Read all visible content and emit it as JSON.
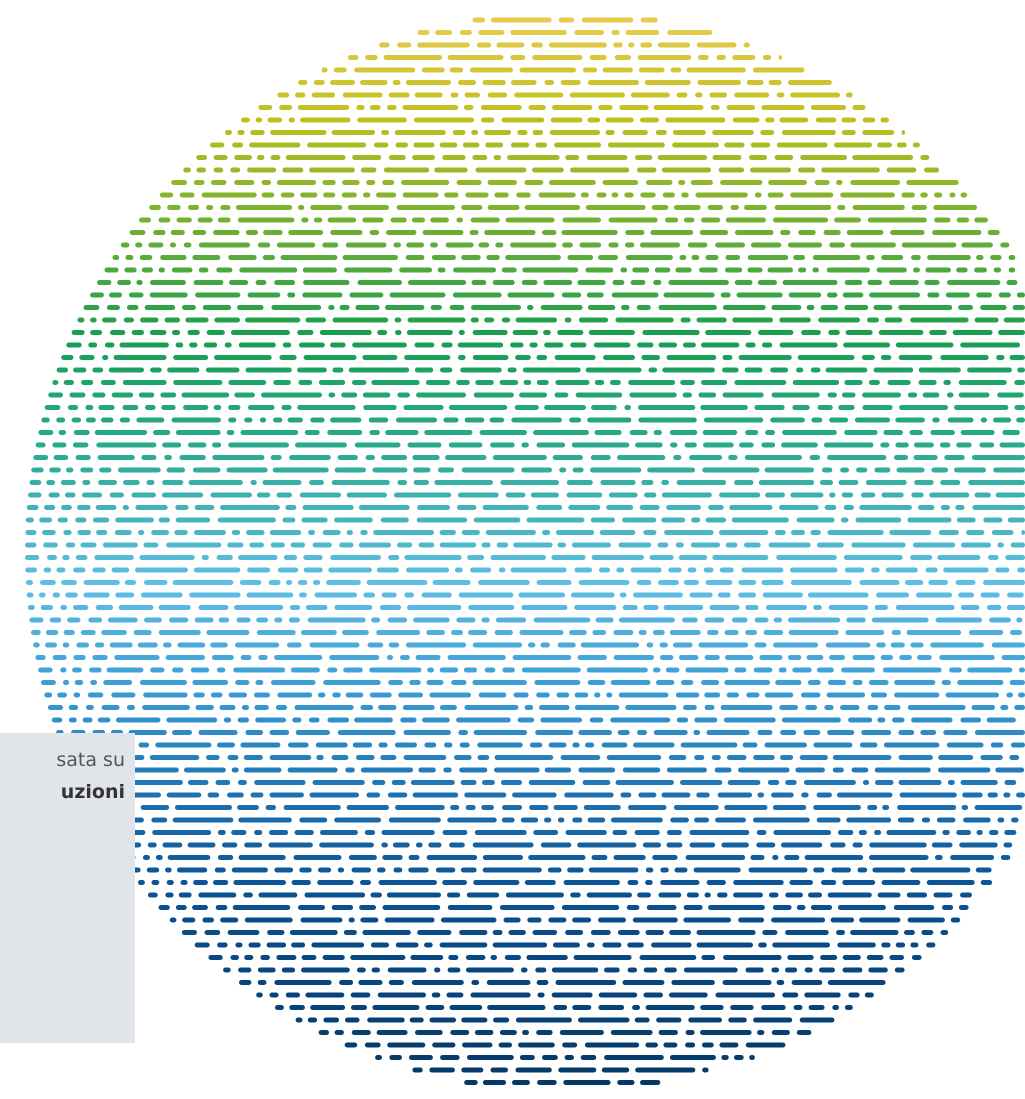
{
  "panel": {
    "line1": "sata su",
    "line2": "uzioni"
  }
}
